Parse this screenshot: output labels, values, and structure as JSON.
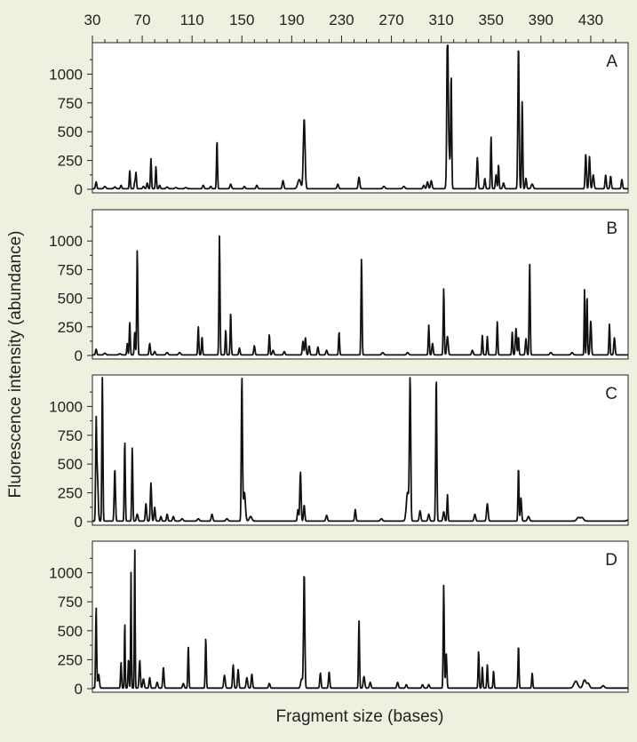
{
  "colors": {
    "background": "#eef0e0",
    "plot_background": "#ffffff",
    "trace": "#111111"
  },
  "chart_data": {
    "type": "line",
    "xlabel": "Fragment size (bases)",
    "ylabel": "Fluorescence intensity (abundance)",
    "x_ticks": [
      30,
      70,
      110,
      150,
      190,
      230,
      270,
      310,
      350,
      390,
      430
    ],
    "xlim": [
      30,
      460
    ],
    "ylim": [
      0,
      1250
    ],
    "y_ticks": [
      0,
      250,
      500,
      750,
      1000
    ],
    "baseline": 5,
    "panels": [
      {
        "name": "A",
        "peaks": [
          [
            33,
            60,
            0.5
          ],
          [
            40,
            20,
            0.8
          ],
          [
            48,
            15,
            0.8
          ],
          [
            53,
            30,
            0.5
          ],
          [
            60,
            160,
            0.4
          ],
          [
            64,
            60,
            0.4
          ],
          [
            65,
            140,
            0.4
          ],
          [
            71,
            20,
            0.6
          ],
          [
            74,
            50,
            0.5
          ],
          [
            77,
            260,
            0.4
          ],
          [
            81,
            190,
            0.4
          ],
          [
            84,
            30,
            0.5
          ],
          [
            90,
            15,
            0.8
          ],
          [
            97,
            10,
            0.8
          ],
          [
            105,
            10,
            0.8
          ],
          [
            119,
            30,
            0.6
          ],
          [
            125,
            20,
            0.6
          ],
          [
            130,
            420,
            0.4
          ],
          [
            141,
            40,
            0.6
          ],
          [
            152,
            20,
            0.6
          ],
          [
            162,
            30,
            0.6
          ],
          [
            183,
            70,
            0.6
          ],
          [
            196,
            80,
            1.2
          ],
          [
            200,
            610,
            0.7
          ],
          [
            227,
            40,
            0.6
          ],
          [
            244,
            100,
            0.6
          ],
          [
            264,
            20,
            0.8
          ],
          [
            280,
            20,
            0.8
          ],
          [
            296,
            30,
            0.6
          ],
          [
            299,
            60,
            0.6
          ],
          [
            302,
            70,
            0.6
          ],
          [
            315,
            1250,
            0.5
          ],
          [
            318,
            950,
            0.4
          ],
          [
            316,
            350,
            1.0
          ],
          [
            339,
            270,
            0.5
          ],
          [
            345,
            90,
            0.5
          ],
          [
            350,
            450,
            0.4
          ],
          [
            354,
            120,
            0.5
          ],
          [
            356,
            210,
            0.4
          ],
          [
            360,
            50,
            0.6
          ],
          [
            372,
            1250,
            0.5
          ],
          [
            375,
            770,
            0.4
          ],
          [
            378,
            90,
            0.5
          ],
          [
            383,
            40,
            0.8
          ],
          [
            426,
            300,
            0.5
          ],
          [
            429,
            280,
            0.5
          ],
          [
            432,
            120,
            0.6
          ],
          [
            442,
            120,
            0.5
          ],
          [
            446,
            110,
            0.5
          ],
          [
            455,
            80,
            0.5
          ]
        ]
      },
      {
        "name": "B",
        "peaks": [
          [
            33,
            50,
            0.5
          ],
          [
            40,
            15,
            0.8
          ],
          [
            52,
            10,
            0.8
          ],
          [
            58,
            100,
            0.4
          ],
          [
            60,
            290,
            0.4
          ],
          [
            64,
            200,
            0.4
          ],
          [
            66,
            920,
            0.4
          ],
          [
            76,
            100,
            0.5
          ],
          [
            80,
            30,
            0.6
          ],
          [
            90,
            20,
            0.8
          ],
          [
            100,
            20,
            0.8
          ],
          [
            115,
            250,
            0.4
          ],
          [
            118,
            160,
            0.4
          ],
          [
            132,
            1040,
            0.4
          ],
          [
            137,
            220,
            0.4
          ],
          [
            141,
            370,
            0.4
          ],
          [
            148,
            60,
            0.5
          ],
          [
            160,
            80,
            0.5
          ],
          [
            172,
            180,
            0.4
          ],
          [
            175,
            40,
            0.6
          ],
          [
            184,
            30,
            0.6
          ],
          [
            199,
            120,
            0.5
          ],
          [
            201,
            150,
            0.5
          ],
          [
            204,
            80,
            0.5
          ],
          [
            211,
            70,
            0.5
          ],
          [
            218,
            40,
            0.6
          ],
          [
            228,
            200,
            0.4
          ],
          [
            246,
            850,
            0.4
          ],
          [
            263,
            20,
            0.8
          ],
          [
            283,
            20,
            0.8
          ],
          [
            300,
            260,
            0.4
          ],
          [
            303,
            100,
            0.5
          ],
          [
            312,
            580,
            0.4
          ],
          [
            315,
            160,
            0.6
          ],
          [
            335,
            40,
            0.6
          ],
          [
            343,
            170,
            0.4
          ],
          [
            347,
            160,
            0.4
          ],
          [
            355,
            290,
            0.4
          ],
          [
            367,
            200,
            0.4
          ],
          [
            370,
            230,
            0.5
          ],
          [
            372,
            160,
            0.4
          ],
          [
            378,
            140,
            0.5
          ],
          [
            381,
            800,
            0.4
          ],
          [
            398,
            20,
            0.8
          ],
          [
            415,
            20,
            0.8
          ],
          [
            425,
            570,
            0.3
          ],
          [
            427,
            520,
            0.4
          ],
          [
            430,
            300,
            0.5
          ],
          [
            445,
            270,
            0.4
          ],
          [
            449,
            150,
            0.5
          ]
        ]
      },
      {
        "name": "C",
        "peaks": [
          [
            33,
            800,
            0.4
          ],
          [
            34,
            400,
            0.6
          ],
          [
            38,
            1250,
            0.4
          ],
          [
            48,
            450,
            0.5
          ],
          [
            56,
            700,
            0.4
          ],
          [
            62,
            640,
            0.4
          ],
          [
            66,
            60,
            0.6
          ],
          [
            73,
            150,
            0.5
          ],
          [
            77,
            330,
            0.5
          ],
          [
            80,
            120,
            0.5
          ],
          [
            85,
            40,
            0.5
          ],
          [
            90,
            60,
            0.5
          ],
          [
            95,
            40,
            0.6
          ],
          [
            102,
            20,
            0.8
          ],
          [
            115,
            20,
            0.8
          ],
          [
            126,
            60,
            0.6
          ],
          [
            138,
            20,
            0.8
          ],
          [
            150,
            1250,
            0.45
          ],
          [
            152,
            250,
            0.8
          ],
          [
            157,
            40,
            1.0
          ],
          [
            195,
            100,
            0.5
          ],
          [
            197,
            430,
            0.5
          ],
          [
            200,
            140,
            0.5
          ],
          [
            218,
            50,
            0.6
          ],
          [
            241,
            100,
            0.5
          ],
          [
            262,
            20,
            0.8
          ],
          [
            283,
            250,
            1.0
          ],
          [
            285,
            1250,
            0.5
          ],
          [
            293,
            90,
            0.6
          ],
          [
            300,
            60,
            0.6
          ],
          [
            306,
            1250,
            0.45
          ],
          [
            312,
            80,
            0.6
          ],
          [
            315,
            230,
            0.4
          ],
          [
            337,
            60,
            0.6
          ],
          [
            347,
            150,
            0.6
          ],
          [
            372,
            470,
            0.4
          ],
          [
            374,
            200,
            0.5
          ],
          [
            380,
            40,
            0.8
          ],
          [
            420,
            30,
            1.2
          ],
          [
            423,
            30,
            1.2
          ],
          [
            460,
            10,
            1.0
          ]
        ]
      },
      {
        "name": "D",
        "peaks": [
          [
            33,
            700,
            0.4
          ],
          [
            35,
            120,
            0.6
          ],
          [
            53,
            220,
            0.4
          ],
          [
            56,
            580,
            0.3
          ],
          [
            59,
            250,
            0.4
          ],
          [
            61,
            1000,
            0.3
          ],
          [
            64,
            1250,
            0.3
          ],
          [
            68,
            240,
            0.5
          ],
          [
            71,
            80,
            0.6
          ],
          [
            76,
            90,
            0.5
          ],
          [
            82,
            50,
            0.6
          ],
          [
            87,
            180,
            0.5
          ],
          [
            103,
            40,
            0.6
          ],
          [
            107,
            360,
            0.4
          ],
          [
            121,
            430,
            0.4
          ],
          [
            136,
            110,
            0.6
          ],
          [
            143,
            200,
            0.5
          ],
          [
            147,
            160,
            0.5
          ],
          [
            154,
            90,
            0.6
          ],
          [
            158,
            120,
            0.5
          ],
          [
            172,
            40,
            0.6
          ],
          [
            198,
            80,
            0.8
          ],
          [
            200,
            1000,
            0.5
          ],
          [
            213,
            130,
            0.5
          ],
          [
            220,
            140,
            0.5
          ],
          [
            244,
            590,
            0.4
          ],
          [
            248,
            100,
            0.6
          ],
          [
            253,
            50,
            0.6
          ],
          [
            275,
            50,
            0.6
          ],
          [
            282,
            30,
            0.6
          ],
          [
            295,
            30,
            0.6
          ],
          [
            300,
            30,
            0.6
          ],
          [
            312,
            890,
            0.4
          ],
          [
            314,
            300,
            0.5
          ],
          [
            340,
            320,
            0.4
          ],
          [
            343,
            180,
            0.4
          ],
          [
            347,
            200,
            0.4
          ],
          [
            352,
            150,
            0.4
          ],
          [
            372,
            370,
            0.4
          ],
          [
            383,
            130,
            0.4
          ],
          [
            418,
            60,
            1.5
          ],
          [
            425,
            70,
            1.2
          ],
          [
            428,
            40,
            1.0
          ],
          [
            440,
            20,
            1.0
          ]
        ]
      }
    ]
  }
}
